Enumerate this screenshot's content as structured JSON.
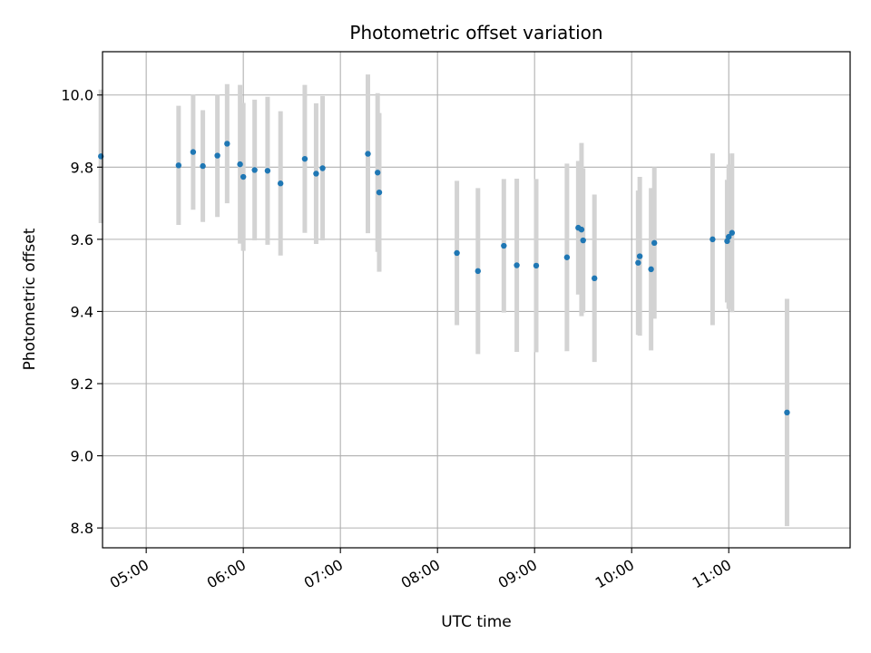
{
  "chart_data": {
    "type": "scatter",
    "title": "Photometric offset variation",
    "xlabel": "UTC time",
    "ylabel": "Photometric offset",
    "x_ticks": [
      "05:00",
      "06:00",
      "07:00",
      "08:00",
      "09:00",
      "10:00",
      "11:00"
    ],
    "y_ticks": [
      "8.8",
      "9.0",
      "9.2",
      "9.4",
      "9.6",
      "9.8",
      "10.0"
    ],
    "xlim": [
      "04:33",
      "12:15"
    ],
    "ylim": [
      8.745,
      10.12
    ],
    "grid": true,
    "colors": {
      "point": "#1f77b4",
      "errorbar": "#d3d3d3",
      "grid": "#b0b0b0"
    },
    "points": [
      {
        "t": "04:32",
        "y": 9.83,
        "err": 0.185
      },
      {
        "t": "05:20",
        "y": 9.805,
        "err": 0.165
      },
      {
        "t": "05:29",
        "y": 9.842,
        "err": 0.16
      },
      {
        "t": "05:35",
        "y": 9.803,
        "err": 0.155
      },
      {
        "t": "05:44",
        "y": 9.832,
        "err": 0.17
      },
      {
        "t": "05:50",
        "y": 9.865,
        "err": 0.165
      },
      {
        "t": "05:58",
        "y": 9.808,
        "err": 0.22
      },
      {
        "t": "06:00",
        "y": 9.773,
        "err": 0.205
      },
      {
        "t": "06:07",
        "y": 9.792,
        "err": 0.195
      },
      {
        "t": "06:15",
        "y": 9.79,
        "err": 0.205
      },
      {
        "t": "06:23",
        "y": 9.755,
        "err": 0.2
      },
      {
        "t": "06:38",
        "y": 9.823,
        "err": 0.205
      },
      {
        "t": "06:45",
        "y": 9.782,
        "err": 0.195
      },
      {
        "t": "06:49",
        "y": 9.797,
        "err": 0.2
      },
      {
        "t": "07:17",
        "y": 9.837,
        "err": 0.22
      },
      {
        "t": "07:23",
        "y": 9.785,
        "err": 0.22
      },
      {
        "t": "07:24",
        "y": 9.73,
        "err": 0.22
      },
      {
        "t": "08:12",
        "y": 9.562,
        "err": 0.2
      },
      {
        "t": "08:25",
        "y": 9.512,
        "err": 0.23
      },
      {
        "t": "08:41",
        "y": 9.582,
        "err": 0.185
      },
      {
        "t": "08:49",
        "y": 9.528,
        "err": 0.24
      },
      {
        "t": "09:01",
        "y": 9.527,
        "err": 0.24
      },
      {
        "t": "09:20",
        "y": 9.55,
        "err": 0.26
      },
      {
        "t": "09:27",
        "y": 9.632,
        "err": 0.185
      },
      {
        "t": "09:29",
        "y": 9.627,
        "err": 0.24
      },
      {
        "t": "09:30",
        "y": 9.597,
        "err": 0.2
      },
      {
        "t": "09:37",
        "y": 9.492,
        "err": 0.232
      },
      {
        "t": "10:04",
        "y": 9.535,
        "err": 0.2
      },
      {
        "t": "10:05",
        "y": 9.553,
        "err": 0.22
      },
      {
        "t": "10:12",
        "y": 9.517,
        "err": 0.225
      },
      {
        "t": "10:14",
        "y": 9.59,
        "err": 0.21
      },
      {
        "t": "10:50",
        "y": 9.6,
        "err": 0.238
      },
      {
        "t": "10:59",
        "y": 9.595,
        "err": 0.17
      },
      {
        "t": "11:00",
        "y": 9.607,
        "err": 0.2
      },
      {
        "t": "11:02",
        "y": 9.618,
        "err": 0.22
      },
      {
        "t": "11:36",
        "y": 9.12,
        "err": 0.315
      }
    ]
  }
}
